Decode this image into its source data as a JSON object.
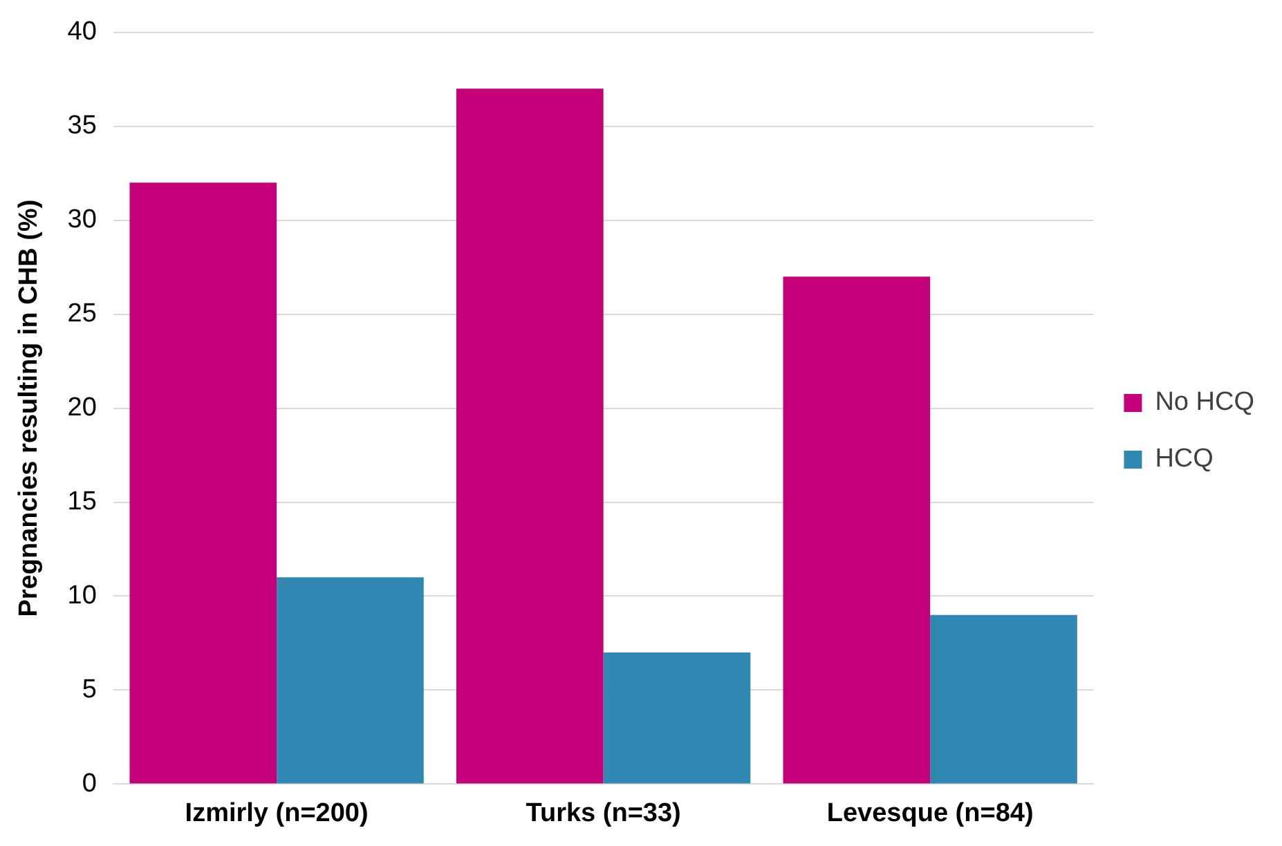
{
  "chart_data": {
    "type": "bar",
    "ylabel": "Pregnancies resulting in CHB (%)",
    "categories": [
      "Izmirly (n=200)",
      "Turks (n=33)",
      "Levesque (n=84)"
    ],
    "series": [
      {
        "name": "No HCQ",
        "color": "#c5007a",
        "values": [
          32,
          37,
          27
        ]
      },
      {
        "name": "HCQ",
        "color": "#2e88b1",
        "values": [
          11,
          7,
          9
        ]
      }
    ],
    "ylim": [
      0,
      40
    ],
    "yticks": [
      0,
      5,
      10,
      15,
      20,
      25,
      30,
      35,
      40
    ],
    "grid": "y",
    "legend": "right"
  }
}
